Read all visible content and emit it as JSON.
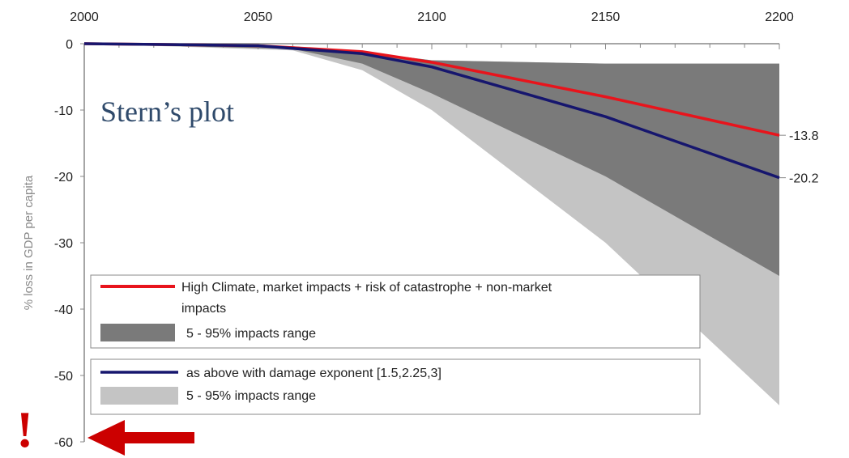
{
  "chart_data": {
    "type": "area",
    "title": "",
    "overlay_text": "Stern’s plot",
    "xlabel": "",
    "ylabel": "% loss in GDP per capita",
    "xlim": [
      2000,
      2200
    ],
    "ylim": [
      -60,
      0
    ],
    "x_ticks": [
      2000,
      2050,
      2100,
      2150,
      2200
    ],
    "y_ticks": [
      0,
      -10,
      -20,
      -30,
      -40,
      -50,
      -60
    ],
    "x_axis_position": "top",
    "grid": false,
    "bands": [
      {
        "name": "5 - 95% impacts range",
        "group": "as above with damage exponent [1.5,2.25,3]",
        "color": "#c4c4c4",
        "x": [
          2000,
          2060,
          2080,
          2100,
          2150,
          2200
        ],
        "upper": [
          0,
          -0.4,
          -1.2,
          -2.5,
          -3.0,
          -3.0
        ],
        "lower": [
          0,
          -1.0,
          -4.0,
          -10.0,
          -30.0,
          -54.5
        ]
      },
      {
        "name": "5 - 95% impacts range",
        "group": "High Climate, market impacts + risk of catastrophe + non-market impacts",
        "color": "#7a7a7a",
        "x": [
          2000,
          2060,
          2080,
          2100,
          2150,
          2200
        ],
        "upper": [
          0,
          -0.4,
          -1.2,
          -2.5,
          -3.0,
          -3.0
        ],
        "lower": [
          0,
          -0.8,
          -3.0,
          -7.5,
          -20.0,
          -35.0
        ]
      }
    ],
    "series": [
      {
        "name": "High Climate, market impacts + risk of catastrophe + non-market impacts",
        "color": "#e8141c",
        "x": [
          2000,
          2020,
          2050,
          2080,
          2100,
          2150,
          2200
        ],
        "values": [
          0,
          -0.1,
          -0.3,
          -1.2,
          -2.8,
          -8.0,
          -13.8
        ],
        "end_label": "-13.8"
      },
      {
        "name": "as above with damage exponent [1.5,2.25,3]",
        "color": "#16166e",
        "x": [
          2000,
          2020,
          2050,
          2080,
          2100,
          2150,
          2200
        ],
        "values": [
          0,
          -0.1,
          -0.3,
          -1.5,
          -3.5,
          -11.0,
          -20.2
        ],
        "end_label": "-20.2"
      }
    ],
    "legend": [
      {
        "series_line": "High Climate, market impacts + risk of catastrophe + non-market",
        "series_line_2": "impacts",
        "band_label": "5 - 95% impacts range"
      },
      {
        "series_line": "as above with damage exponent [1.5,2.25,3]",
        "band_label": "5 - 95% impacts range"
      }
    ],
    "legend_placement": "bottom-left",
    "annotations": {
      "exclamation": "!",
      "arrow_color": "#cc0000",
      "arrow_points_to_y": -60
    }
  }
}
